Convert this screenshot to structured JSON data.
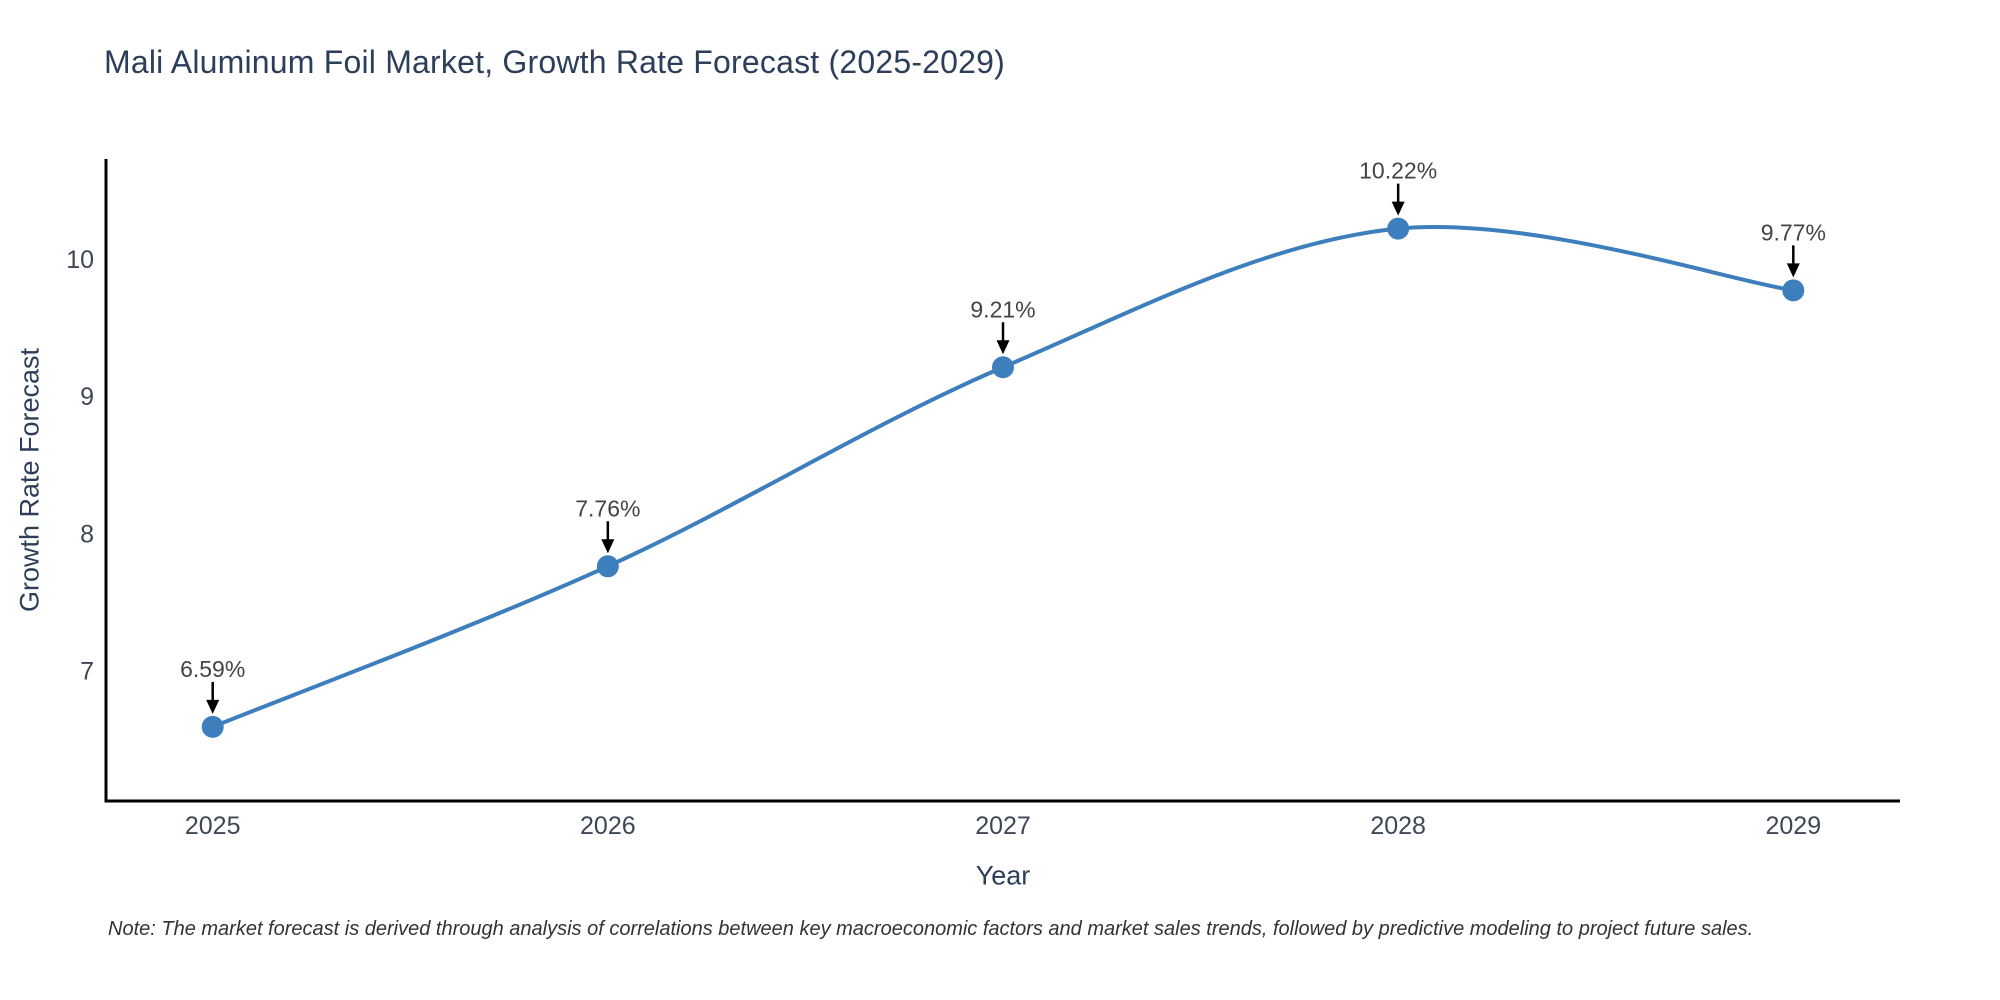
{
  "title": "Mali Aluminum Foil Market, Growth Rate Forecast (2025-2029)",
  "note": "Note: The market forecast is derived through analysis of correlations between key macroeconomic factors and market sales trends, followed by predictive modeling to project future sales.",
  "chart_data": {
    "type": "line",
    "title": "Mali Aluminum Foil Market, Growth Rate Forecast (2025-2029)",
    "xlabel": "Year",
    "ylabel": "Growth Rate Forecast",
    "x": [
      2025,
      2026,
      2027,
      2028,
      2029
    ],
    "y": [
      6.59,
      7.76,
      9.21,
      10.22,
      9.77
    ],
    "point_labels": [
      "6.59%",
      "7.76%",
      "9.21%",
      "10.22%",
      "9.77%"
    ],
    "x_tick_labels": [
      "2025",
      "2026",
      "2027",
      "2028",
      "2029"
    ],
    "y_tick_values": [
      7,
      8,
      9,
      10
    ],
    "y_tick_labels": [
      "7",
      "8",
      "9",
      "10"
    ],
    "x_range": [
      2024.73,
      2029.27
    ],
    "y_range": [
      6.05,
      10.72
    ],
    "line_shape": "spline",
    "grid": false,
    "legend_position": "none",
    "colors": {
      "line": "#3d7ebd",
      "marker": "#3d7ebd",
      "axis": "#000000",
      "arrow": "#000000",
      "title_text": "#2c3e5a",
      "axis_title_text": "#2c3e5a",
      "tick_text": "#3e4755",
      "annotation_text": "#444444",
      "note_text": "#333333",
      "background": "#ffffff"
    }
  }
}
